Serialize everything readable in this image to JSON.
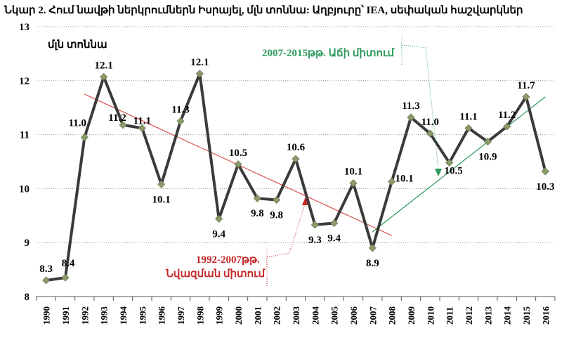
{
  "title": "Նկար 2. Հում նավթի ներկրումներն Իսրայել, մլն տոննա: Աղբյուրը՝ IEA, սեփական հաշվարկներ",
  "chart_data": {
    "type": "line",
    "unit_label": "մլն տոննա",
    "x": [
      "1990",
      "1991",
      "1992",
      "1993",
      "1994",
      "1995",
      "1996",
      "1997",
      "1998",
      "1999",
      "2000",
      "2001",
      "2002",
      "2003",
      "2004",
      "2005",
      "2006",
      "2007",
      "2008",
      "2009",
      "2010",
      "2011",
      "2012",
      "2013",
      "2014",
      "2015",
      "2016"
    ],
    "values": [
      8.3,
      8.35,
      10.95,
      12.07,
      11.18,
      11.12,
      10.08,
      11.25,
      12.13,
      9.44,
      10.45,
      9.82,
      9.79,
      10.55,
      9.33,
      9.36,
      10.1,
      8.9,
      10.13,
      11.32,
      11.02,
      10.48,
      11.12,
      10.87,
      11.15,
      11.7,
      10.32
    ],
    "data_labels": [
      "8.3",
      "8.4",
      "11.0",
      "12.1",
      "11.2",
      "11.1",
      "10.1",
      "11.3",
      "12.1",
      "9.4",
      "10.5",
      "9.8",
      "9.8",
      "10.6",
      "9.3",
      "9.4",
      "10.1",
      "8.9",
      "10.1",
      "11.3",
      "11.0",
      "10.5",
      "11.1",
      "10.9",
      "11.2",
      "11.7",
      "10.3"
    ],
    "ylim": [
      8,
      13
    ],
    "yticks": [
      8,
      9,
      10,
      11,
      12,
      13
    ],
    "grid": "horizontal dotted",
    "line_color": "#3a3a3a",
    "marker_color": "#8a9a6a",
    "trendlines": [
      {
        "from_year": "1992",
        "to_year": "2008",
        "from_value": 11.75,
        "to_value": 9.13,
        "color": "#d9534f"
      },
      {
        "from_year": "2007",
        "to_year": "2016",
        "from_value": 9.2,
        "to_value": 11.7,
        "color": "#2e9a5b"
      }
    ],
    "annotations": [
      {
        "id": "green",
        "lines": [
          "2007-2015թթ. Աճի միտում"
        ],
        "color": "#2e9a5b"
      },
      {
        "id": "red",
        "lines": [
          "1992-2007թթ.",
          "Նվազման միտում"
        ],
        "color": "#c62828"
      }
    ]
  }
}
